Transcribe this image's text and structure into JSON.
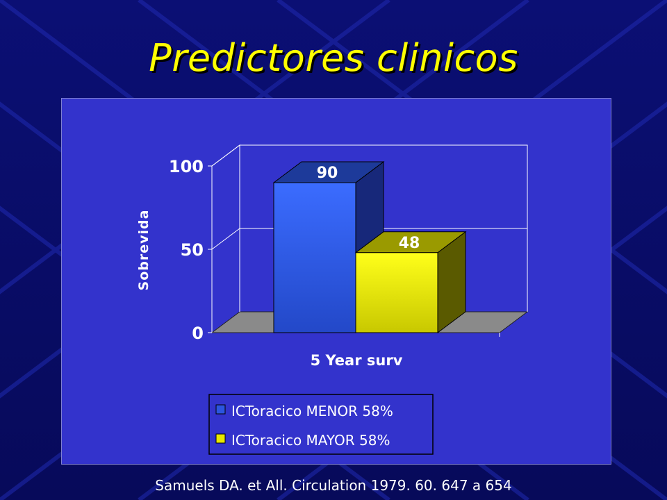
{
  "slide": {
    "title": "Predictores clinicos",
    "citation": "Samuels DA. et All.  Circulation 1979.  60.  647 a 654",
    "colors": {
      "background": "#0a0f6e",
      "title": "#ffff00",
      "panel": "#3333cc"
    }
  },
  "chart_data": {
    "type": "bar",
    "title": "",
    "xlabel": "5 Year surv",
    "ylabel": "Sobrevida",
    "ylim": [
      0,
      100
    ],
    "yticks": [
      0,
      50,
      100
    ],
    "categories": [
      "5 Year surv"
    ],
    "series": [
      {
        "name": "ICToracico MENOR 58%",
        "values": [
          90
        ],
        "color": "#3366ff"
      },
      {
        "name": "ICToracico MAYOR 58%",
        "values": [
          48
        ],
        "color": "#ffff00"
      }
    ],
    "data_labels": [
      "90",
      "48"
    ],
    "grid": true,
    "legend": "bottom",
    "style": "3d"
  }
}
